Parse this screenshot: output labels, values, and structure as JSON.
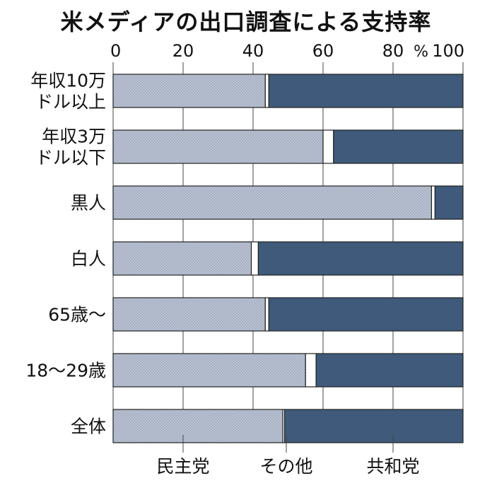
{
  "colors": {
    "democrat": "#b9c1d2",
    "other": "#ffffff",
    "republican": "#3f5a7a",
    "border": "#222222",
    "grid": "#444444"
  },
  "chart_data": {
    "type": "bar",
    "orientation": "horizontal",
    "stacked": true,
    "title": "米メディアの出口調査による支持率",
    "unit": "%",
    "xlim": [
      0,
      100
    ],
    "xticks": [
      0,
      20,
      40,
      60,
      80,
      100
    ],
    "categories": [
      "年収10万ドル以上",
      "年収3万ドル以下",
      "黒人",
      "白人",
      "65歳～",
      "18～29歳",
      "全体"
    ],
    "category_lines": [
      [
        "年収10万",
        "ドル以上"
      ],
      [
        "年収3万",
        "ドル以下"
      ],
      [
        "黒人"
      ],
      [
        "白人"
      ],
      [
        "65歳～"
      ],
      [
        "18～29歳"
      ],
      [
        "全体"
      ]
    ],
    "series": [
      {
        "name": "民主党",
        "values": [
          43.5,
          60,
          91,
          39.5,
          43.5,
          55,
          48.5
        ]
      },
      {
        "name": "その他",
        "values": [
          1,
          3,
          1,
          2,
          1,
          3,
          0.5
        ]
      },
      {
        "name": "共和党",
        "values": [
          55.5,
          37,
          8,
          58.5,
          55.5,
          42,
          51
        ]
      }
    ],
    "legend_position": "bottom"
  }
}
